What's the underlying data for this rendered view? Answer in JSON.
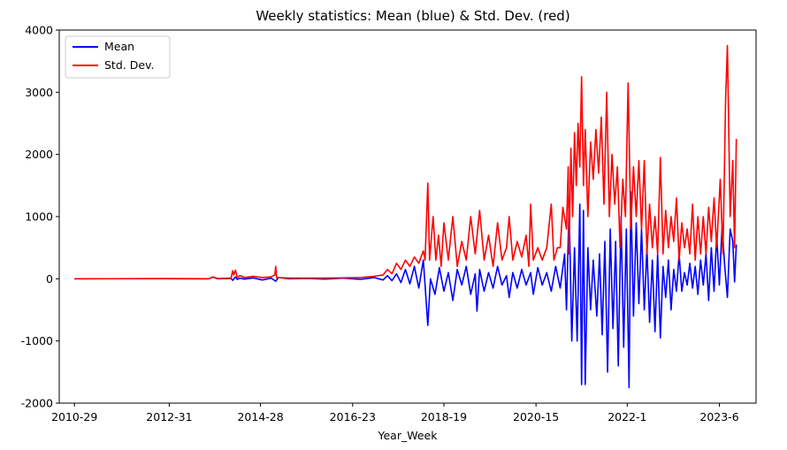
{
  "chart_data": {
    "type": "line",
    "title": "Weekly statistics: Mean (blue) & Std. Dev. (red)",
    "xlabel": "Year_Week",
    "ylabel": "",
    "x_ticks": [
      "2010-29",
      "2012-31",
      "2014-28",
      "2016-23",
      "2018-19",
      "2020-15",
      "2022-1",
      "2023-6"
    ],
    "x_tick_index": [
      0,
      106,
      208,
      311,
      413,
      516,
      618,
      721
    ],
    "x_range": [
      -17,
      762
    ],
    "ylim": [
      -2000,
      4000
    ],
    "y_ticks": [
      -2000,
      -1000,
      0,
      1000,
      2000,
      3000,
      4000
    ],
    "grid": false,
    "legend_position": "top-left",
    "series": [
      {
        "name": "Mean",
        "color": "#0000ff",
        "points": [
          [
            0,
            0
          ],
          [
            100,
            2
          ],
          [
            150,
            0
          ],
          [
            155,
            25
          ],
          [
            160,
            0
          ],
          [
            175,
            5
          ],
          [
            177,
            -25
          ],
          [
            180,
            30
          ],
          [
            182,
            -10
          ],
          [
            185,
            10
          ],
          [
            190,
            -5
          ],
          [
            200,
            15
          ],
          [
            210,
            -20
          ],
          [
            220,
            10
          ],
          [
            225,
            -40
          ],
          [
            228,
            20
          ],
          [
            240,
            0
          ],
          [
            260,
            5
          ],
          [
            280,
            -5
          ],
          [
            300,
            10
          ],
          [
            320,
            -10
          ],
          [
            335,
            20
          ],
          [
            345,
            -20
          ],
          [
            350,
            50
          ],
          [
            355,
            -30
          ],
          [
            360,
            80
          ],
          [
            365,
            -60
          ],
          [
            370,
            150
          ],
          [
            375,
            -80
          ],
          [
            380,
            200
          ],
          [
            385,
            -150
          ],
          [
            390,
            300
          ],
          [
            392,
            -100
          ],
          [
            395,
            -750
          ],
          [
            398,
            0
          ],
          [
            403,
            -250
          ],
          [
            408,
            180
          ],
          [
            413,
            -200
          ],
          [
            418,
            100
          ],
          [
            423,
            -350
          ],
          [
            428,
            150
          ],
          [
            433,
            -100
          ],
          [
            438,
            200
          ],
          [
            443,
            -250
          ],
          [
            448,
            80
          ],
          [
            450,
            -520
          ],
          [
            453,
            150
          ],
          [
            458,
            -200
          ],
          [
            463,
            100
          ],
          [
            468,
            -150
          ],
          [
            473,
            200
          ],
          [
            478,
            -100
          ],
          [
            483,
            50
          ],
          [
            486,
            -300
          ],
          [
            490,
            100
          ],
          [
            495,
            -150
          ],
          [
            500,
            150
          ],
          [
            505,
            -100
          ],
          [
            510,
            100
          ],
          [
            513,
            -250
          ],
          [
            518,
            180
          ],
          [
            523,
            -100
          ],
          [
            528,
            100
          ],
          [
            533,
            -200
          ],
          [
            538,
            200
          ],
          [
            543,
            -150
          ],
          [
            548,
            400
          ],
          [
            550,
            -500
          ],
          [
            553,
            1200
          ],
          [
            556,
            -1000
          ],
          [
            559,
            500
          ],
          [
            562,
            -1000
          ],
          [
            565,
            1200
          ],
          [
            567,
            -1700
          ],
          [
            569,
            1100
          ],
          [
            571,
            -1700
          ],
          [
            574,
            500
          ],
          [
            577,
            -500
          ],
          [
            580,
            300
          ],
          [
            584,
            -600
          ],
          [
            587,
            400
          ],
          [
            590,
            -900
          ],
          [
            593,
            600
          ],
          [
            596,
            -1500
          ],
          [
            599,
            800
          ],
          [
            602,
            -800
          ],
          [
            605,
            600
          ],
          [
            608,
            -1400
          ],
          [
            611,
            1000
          ],
          [
            614,
            -1100
          ],
          [
            617,
            800
          ],
          [
            620,
            -1750
          ],
          [
            622,
            1400
          ],
          [
            625,
            -600
          ],
          [
            628,
            900
          ],
          [
            631,
            -400
          ],
          [
            634,
            800
          ],
          [
            637,
            -500
          ],
          [
            640,
            500
          ],
          [
            643,
            -700
          ],
          [
            646,
            300
          ],
          [
            649,
            -850
          ],
          [
            652,
            400
          ],
          [
            655,
            -950
          ],
          [
            658,
            200
          ],
          [
            661,
            -300
          ],
          [
            664,
            300
          ],
          [
            667,
            -500
          ],
          [
            670,
            150
          ],
          [
            673,
            -200
          ],
          [
            676,
            400
          ],
          [
            679,
            -200
          ],
          [
            682,
            100
          ],
          [
            685,
            -100
          ],
          [
            688,
            250
          ],
          [
            691,
            -150
          ],
          [
            694,
            200
          ],
          [
            697,
            -250
          ],
          [
            700,
            300
          ],
          [
            703,
            -100
          ],
          [
            706,
            400
          ],
          [
            709,
            -350
          ],
          [
            712,
            500
          ],
          [
            715,
            -200
          ],
          [
            718,
            700
          ],
          [
            721,
            -100
          ],
          [
            724,
            850
          ],
          [
            727,
            200
          ],
          [
            730,
            -300
          ],
          [
            733,
            800
          ],
          [
            736,
            600
          ],
          [
            738,
            -50
          ],
          [
            740,
            550
          ]
        ]
      },
      {
        "name": "Std. Dev.",
        "color": "#ff0000",
        "points": [
          [
            0,
            0
          ],
          [
            100,
            2
          ],
          [
            150,
            0
          ],
          [
            155,
            30
          ],
          [
            160,
            5
          ],
          [
            175,
            10
          ],
          [
            177,
            130
          ],
          [
            178,
            60
          ],
          [
            180,
            140
          ],
          [
            182,
            20
          ],
          [
            185,
            50
          ],
          [
            190,
            20
          ],
          [
            200,
            40
          ],
          [
            210,
            20
          ],
          [
            220,
            30
          ],
          [
            224,
            60
          ],
          [
            225,
            200
          ],
          [
            226,
            20
          ],
          [
            240,
            10
          ],
          [
            260,
            10
          ],
          [
            280,
            10
          ],
          [
            300,
            15
          ],
          [
            320,
            20
          ],
          [
            335,
            40
          ],
          [
            345,
            60
          ],
          [
            350,
            150
          ],
          [
            355,
            80
          ],
          [
            360,
            250
          ],
          [
            365,
            150
          ],
          [
            370,
            300
          ],
          [
            375,
            200
          ],
          [
            380,
            350
          ],
          [
            385,
            250
          ],
          [
            390,
            450
          ],
          [
            392,
            300
          ],
          [
            395,
            1540
          ],
          [
            397,
            300
          ],
          [
            401,
            1000
          ],
          [
            404,
            300
          ],
          [
            407,
            700
          ],
          [
            410,
            200
          ],
          [
            413,
            900
          ],
          [
            418,
            300
          ],
          [
            423,
            1000
          ],
          [
            428,
            200
          ],
          [
            433,
            600
          ],
          [
            438,
            300
          ],
          [
            443,
            1000
          ],
          [
            448,
            400
          ],
          [
            453,
            1100
          ],
          [
            458,
            300
          ],
          [
            463,
            700
          ],
          [
            468,
            200
          ],
          [
            473,
            900
          ],
          [
            478,
            300
          ],
          [
            483,
            500
          ],
          [
            486,
            1000
          ],
          [
            490,
            300
          ],
          [
            495,
            600
          ],
          [
            500,
            350
          ],
          [
            505,
            700
          ],
          [
            508,
            200
          ],
          [
            510,
            1200
          ],
          [
            513,
            300
          ],
          [
            518,
            500
          ],
          [
            523,
            300
          ],
          [
            528,
            500
          ],
          [
            533,
            1200
          ],
          [
            536,
            300
          ],
          [
            540,
            500
          ],
          [
            543,
            500
          ],
          [
            546,
            1150
          ],
          [
            550,
            800
          ],
          [
            552,
            1800
          ],
          [
            553,
            400
          ],
          [
            555,
            2100
          ],
          [
            557,
            1000
          ],
          [
            559,
            2350
          ],
          [
            561,
            1500
          ],
          [
            563,
            2500
          ],
          [
            565,
            1800
          ],
          [
            567,
            3250
          ],
          [
            569,
            1500
          ],
          [
            571,
            2400
          ],
          [
            574,
            1000
          ],
          [
            577,
            2200
          ],
          [
            580,
            1600
          ],
          [
            583,
            2400
          ],
          [
            586,
            1700
          ],
          [
            589,
            2600
          ],
          [
            592,
            1200
          ],
          [
            595,
            3000
          ],
          [
            598,
            1000
          ],
          [
            601,
            2000
          ],
          [
            604,
            1200
          ],
          [
            607,
            1800
          ],
          [
            610,
            500
          ],
          [
            613,
            1600
          ],
          [
            616,
            1000
          ],
          [
            619,
            3150
          ],
          [
            622,
            800
          ],
          [
            625,
            1800
          ],
          [
            628,
            1000
          ],
          [
            631,
            1900
          ],
          [
            634,
            800
          ],
          [
            637,
            1900
          ],
          [
            640,
            400
          ],
          [
            643,
            1200
          ],
          [
            646,
            500
          ],
          [
            649,
            1000
          ],
          [
            652,
            400
          ],
          [
            655,
            1950
          ],
          [
            658,
            400
          ],
          [
            661,
            1100
          ],
          [
            664,
            500
          ],
          [
            667,
            1000
          ],
          [
            670,
            600
          ],
          [
            673,
            1300
          ],
          [
            676,
            300
          ],
          [
            679,
            900
          ],
          [
            682,
            500
          ],
          [
            685,
            800
          ],
          [
            688,
            400
          ],
          [
            691,
            1200
          ],
          [
            694,
            300
          ],
          [
            697,
            1000
          ],
          [
            700,
            400
          ],
          [
            703,
            1000
          ],
          [
            706,
            400
          ],
          [
            709,
            1150
          ],
          [
            712,
            600
          ],
          [
            715,
            1300
          ],
          [
            718,
            500
          ],
          [
            722,
            1600
          ],
          [
            725,
            400
          ],
          [
            728,
            2900
          ],
          [
            730,
            3750
          ],
          [
            733,
            1000
          ],
          [
            736,
            1900
          ],
          [
            738,
            500
          ],
          [
            740,
            2250
          ]
        ]
      }
    ]
  }
}
